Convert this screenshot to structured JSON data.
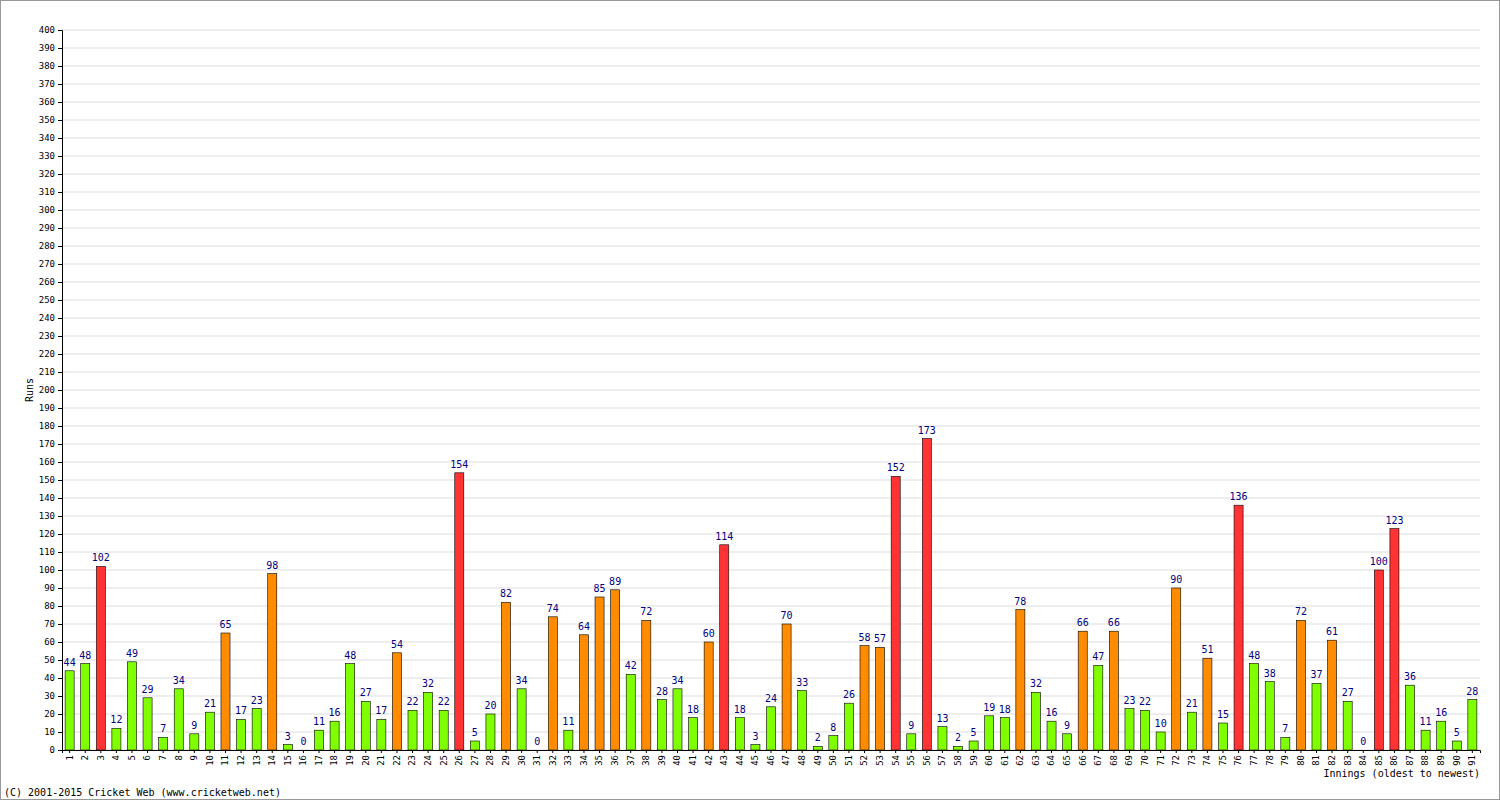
{
  "chart_data": {
    "type": "bar",
    "y_label": "Runs",
    "x_label": "Innings (oldest to newest)",
    "annotations": [
      "(C) 2001-2015 Cricket Web (www.cricketweb.net)"
    ],
    "categories": [
      "1",
      "2",
      "3",
      "4",
      "5",
      "6",
      "7",
      "8",
      "9",
      "10",
      "11",
      "12",
      "13",
      "14",
      "15",
      "16",
      "17",
      "18",
      "19",
      "20",
      "21",
      "22",
      "23",
      "24",
      "25",
      "26",
      "27",
      "28",
      "29",
      "30",
      "31",
      "32",
      "33",
      "34",
      "35",
      "36",
      "37",
      "38",
      "39",
      "40",
      "41",
      "42",
      "43",
      "44",
      "45",
      "46",
      "47",
      "48",
      "49",
      "50",
      "51",
      "52",
      "53",
      "54",
      "55",
      "56",
      "57",
      "58",
      "59",
      "60",
      "61",
      "62",
      "63",
      "64",
      "65",
      "66",
      "67",
      "68",
      "69",
      "70",
      "71",
      "72",
      "73",
      "74",
      "75",
      "76",
      "77",
      "78",
      "79",
      "80",
      "81",
      "82",
      "83",
      "84",
      "85",
      "86",
      "87",
      "88",
      "89",
      "90",
      "91"
    ],
    "values": [
      44,
      48,
      102,
      12,
      49,
      29,
      7,
      34,
      9,
      21,
      65,
      17,
      23,
      98,
      3,
      0,
      11,
      16,
      48,
      27,
      17,
      54,
      22,
      32,
      22,
      154,
      5,
      20,
      82,
      34,
      0,
      74,
      11,
      64,
      85,
      89,
      42,
      72,
      28,
      34,
      18,
      60,
      114,
      18,
      3,
      24,
      70,
      33,
      2,
      8,
      26,
      58,
      57,
      152,
      9,
      173,
      13,
      2,
      5,
      19,
      18,
      78,
      32,
      16,
      9,
      66,
      47,
      66,
      23,
      22,
      10,
      90,
      21,
      51,
      15,
      136,
      48,
      38,
      7,
      72,
      37,
      61,
      27,
      0,
      100,
      123,
      36,
      11,
      16,
      5,
      28
    ],
    "colors": [
      "#80ff00",
      "#80ff00",
      "#ff3333",
      "#80ff00",
      "#80ff00",
      "#80ff00",
      "#80ff00",
      "#80ff00",
      "#80ff00",
      "#80ff00",
      "#ff8c00",
      "#80ff00",
      "#80ff00",
      "#ff8c00",
      "#80ff00",
      "#80ff00",
      "#80ff00",
      "#80ff00",
      "#80ff00",
      "#80ff00",
      "#80ff00",
      "#ff8c00",
      "#80ff00",
      "#80ff00",
      "#80ff00",
      "#ff3333",
      "#80ff00",
      "#80ff00",
      "#ff8c00",
      "#80ff00",
      "#80ff00",
      "#ff8c00",
      "#80ff00",
      "#ff8c00",
      "#ff8c00",
      "#ff8c00",
      "#80ff00",
      "#ff8c00",
      "#80ff00",
      "#80ff00",
      "#80ff00",
      "#ff8c00",
      "#ff3333",
      "#80ff00",
      "#80ff00",
      "#80ff00",
      "#ff8c00",
      "#80ff00",
      "#80ff00",
      "#80ff00",
      "#80ff00",
      "#ff8c00",
      "#ff8c00",
      "#ff3333",
      "#80ff00",
      "#ff3333",
      "#80ff00",
      "#80ff00",
      "#80ff00",
      "#80ff00",
      "#80ff00",
      "#ff8c00",
      "#80ff00",
      "#80ff00",
      "#80ff00",
      "#ff8c00",
      "#80ff00",
      "#ff8c00",
      "#80ff00",
      "#80ff00",
      "#80ff00",
      "#ff8c00",
      "#80ff00",
      "#ff8c00",
      "#80ff00",
      "#ff3333",
      "#80ff00",
      "#80ff00",
      "#80ff00",
      "#ff8c00",
      "#80ff00",
      "#ff8c00",
      "#80ff00",
      "#80ff00",
      "#ff3333",
      "#ff3333",
      "#80ff00",
      "#80ff00",
      "#80ff00",
      "#80ff00",
      "#80ff00"
    ],
    "ylim": [
      0,
      400
    ],
    "yticks": [
      0,
      10,
      20,
      30,
      40,
      50,
      60,
      70,
      80,
      90,
      100,
      110,
      120,
      130,
      140,
      150,
      160,
      170,
      180,
      190,
      200,
      210,
      220,
      230,
      240,
      250,
      260,
      270,
      280,
      290,
      300,
      310,
      320,
      330,
      340,
      350,
      360,
      370,
      380,
      390,
      400
    ],
    "grid": true,
    "data_labels": true
  }
}
